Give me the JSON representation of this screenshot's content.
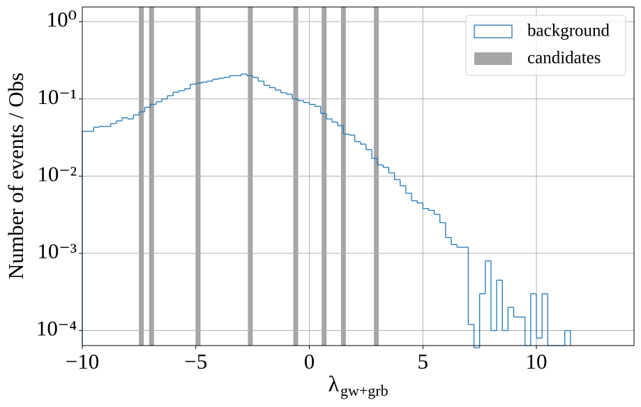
{
  "chart_data": {
    "type": "histogram",
    "xlabel_symbol": "λ",
    "xlabel_subscript": "gw+grb",
    "ylabel": "Number of events / Obs",
    "log_y": true,
    "grid": true,
    "legend_corner": "upper right",
    "xlim": [
      -10,
      14.3
    ],
    "ylim": [
      6.4e-05,
      1.55
    ],
    "xticks": [
      {
        "value": -10,
        "label": "−10"
      },
      {
        "value": -5,
        "label": "−5"
      },
      0,
      5,
      10
    ],
    "yticks": [
      {
        "value": 0.0001,
        "label": "10⁻⁴"
      },
      {
        "value": 0.001,
        "label": "10⁻³"
      },
      {
        "value": 0.01,
        "label": "10⁻²"
      },
      {
        "value": 0.1,
        "label": "10⁻¹"
      },
      {
        "value": 1,
        "label": "10⁰"
      }
    ],
    "bins": [
      -10,
      -9.75,
      -9.5,
      -9.25,
      -9,
      -8.75,
      -8.5,
      -8.25,
      -8,
      -7.75,
      -7.5,
      -7.25,
      -7,
      -6.75,
      -6.5,
      -6.25,
      -6,
      -5.75,
      -5.5,
      -5.25,
      -5,
      -4.75,
      -4.5,
      -4.25,
      -4,
      -3.75,
      -3.5,
      -3.25,
      -3,
      -2.75,
      -2.5,
      -2.25,
      -2,
      -1.75,
      -1.5,
      -1.25,
      -1,
      -0.75,
      -0.5,
      -0.25,
      0,
      0.25,
      0.5,
      0.75,
      1,
      1.25,
      1.5,
      1.75,
      2,
      2.25,
      2.5,
      2.75,
      3,
      3.25,
      3.5,
      3.75,
      4,
      4.25,
      4.5,
      4.75,
      5,
      5.25,
      5.5,
      5.75,
      6,
      6.25,
      6.5,
      6.75,
      7,
      7.25,
      7.5,
      7.75,
      8,
      8.25,
      8.5,
      8.75,
      9,
      9.25,
      9.5,
      9.75,
      10,
      10.25,
      10.5,
      10.75,
      11,
      11.25,
      11.5
    ],
    "series": [
      {
        "name": "background",
        "color": "#1f77b4",
        "values": [
          0.038,
          0.038,
          0.043,
          0.044,
          0.044,
          0.048,
          0.052,
          0.057,
          0.055,
          0.062,
          0.068,
          0.078,
          0.085,
          0.092,
          0.1,
          0.11,
          0.122,
          0.128,
          0.135,
          0.155,
          0.16,
          0.165,
          0.17,
          0.18,
          0.185,
          0.19,
          0.2,
          0.2,
          0.21,
          0.2,
          0.19,
          0.17,
          0.15,
          0.14,
          0.13,
          0.12,
          0.115,
          0.1,
          0.095,
          0.09,
          0.085,
          0.08,
          0.065,
          0.055,
          0.05,
          0.045,
          0.035,
          0.034,
          0.028,
          0.026,
          0.022,
          0.017,
          0.014,
          0.013,
          0.011,
          0.009,
          0.0075,
          0.006,
          0.0048,
          0.0045,
          0.0038,
          0.0036,
          0.0032,
          0.0025,
          0.0016,
          0.0013,
          0.0012,
          0.0012,
          0.00012,
          6e-05,
          0.0003,
          0.0008,
          0.0001,
          0.00045,
          0.0001,
          0.0002,
          0.00015,
          0.00015,
          0,
          0.0003,
          8e-05,
          0.0003,
          0,
          0,
          0,
          0.0001
        ]
      },
      {
        "name": "candidates",
        "color": "#a6a6a6",
        "x": [
          -7.4,
          -6.95,
          -4.9,
          -2.6,
          -0.6,
          0.65,
          1.5,
          2.95
        ]
      }
    ]
  }
}
